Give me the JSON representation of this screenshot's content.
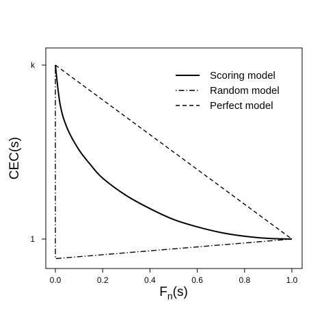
{
  "chart_data": {
    "type": "line",
    "title": "",
    "xlabel": "F",
    "xlabel_sub": "n",
    "xlabel_suffix": "(s)",
    "ylabel": "CEC(s)",
    "xlim": [
      0,
      1
    ],
    "ylim": [
      0.9,
      1.9
    ],
    "x_ticks": [
      0.0,
      0.2,
      0.4,
      0.6,
      0.8,
      1.0
    ],
    "x_tick_labels": [
      "0.0",
      "0.2",
      "0.4",
      "0.6",
      "0.8",
      "1.0"
    ],
    "y_ticks": [
      1,
      1.8
    ],
    "y_tick_labels": [
      "1",
      "k"
    ],
    "grid": false,
    "legend_position": "top-right",
    "series": [
      {
        "name": "Scoring model",
        "style": "solid",
        "x": [
          0,
          0.02,
          0.05,
          0.1,
          0.15,
          0.2,
          0.3,
          0.4,
          0.5,
          0.6,
          0.7,
          0.8,
          0.9,
          1.0
        ],
        "y": [
          1.8,
          1.62,
          1.51,
          1.41,
          1.34,
          1.28,
          1.2,
          1.14,
          1.09,
          1.056,
          1.03,
          1.013,
          1.003,
          1.0
        ]
      },
      {
        "name": "Random model",
        "style": "dotdash",
        "x": [
          0,
          0,
          1
        ],
        "y": [
          1.8,
          0.91,
          1.0
        ]
      },
      {
        "name": "Perfect model",
        "style": "dashed",
        "x": [
          0,
          1
        ],
        "y": [
          1.8,
          1.0
        ]
      }
    ]
  }
}
